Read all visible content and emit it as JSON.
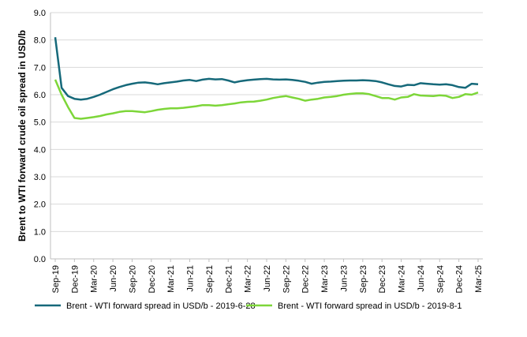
{
  "chart_data": {
    "type": "line",
    "title": "",
    "xlabel": "",
    "ylabel": "Brent to WTI forward crude oil spread in USD/b",
    "ylim": [
      0,
      9
    ],
    "yticks": [
      "0.0",
      "1.0",
      "2.0",
      "3.0",
      "4.0",
      "5.0",
      "6.0",
      "7.0",
      "8.0",
      "9.0"
    ],
    "grid": "horizontal",
    "legend_position": "bottom",
    "x_tick_labels": [
      "Sep-19",
      "Dec-19",
      "Mar-20",
      "Jun-20",
      "Sep-20",
      "Dec-20",
      "Mar-21",
      "Jun-21",
      "Sep-21",
      "Dec-21",
      "Mar-22",
      "Jun-22",
      "Sep-22",
      "Dec-22",
      "Mar-23",
      "Jun-23",
      "Sep-23",
      "Dec-23",
      "Mar-24",
      "Jun-24",
      "Sep-24",
      "Dec-24",
      "Mar-25"
    ],
    "x": [
      "Sep-19",
      "Oct-19",
      "Nov-19",
      "Dec-19",
      "Jan-20",
      "Feb-20",
      "Mar-20",
      "Apr-20",
      "May-20",
      "Jun-20",
      "Jul-20",
      "Aug-20",
      "Sep-20",
      "Oct-20",
      "Nov-20",
      "Dec-20",
      "Jan-21",
      "Feb-21",
      "Mar-21",
      "Apr-21",
      "May-21",
      "Jun-21",
      "Jul-21",
      "Aug-21",
      "Sep-21",
      "Oct-21",
      "Nov-21",
      "Dec-21",
      "Jan-22",
      "Feb-22",
      "Mar-22",
      "Apr-22",
      "May-22",
      "Jun-22",
      "Jul-22",
      "Aug-22",
      "Sep-22",
      "Oct-22",
      "Nov-22",
      "Dec-22",
      "Jan-23",
      "Feb-23",
      "Mar-23",
      "Apr-23",
      "May-23",
      "Jun-23",
      "Jul-23",
      "Aug-23",
      "Sep-23",
      "Oct-23",
      "Nov-23",
      "Dec-23",
      "Jan-24",
      "Feb-24",
      "Mar-24",
      "Apr-24",
      "May-24",
      "Jun-24",
      "Jul-24",
      "Aug-24",
      "Sep-24",
      "Oct-24",
      "Nov-24",
      "Dec-24",
      "Jan-25",
      "Feb-25",
      "Mar-25"
    ],
    "series": [
      {
        "name": "Brent - WTI forward spread in USD/b - 2019-6-28",
        "color": "#16697a",
        "values": [
          8.1,
          6.25,
          5.95,
          5.85,
          5.82,
          5.85,
          5.92,
          6.0,
          6.1,
          6.2,
          6.28,
          6.35,
          6.4,
          6.44,
          6.45,
          6.42,
          6.38,
          6.42,
          6.45,
          6.48,
          6.52,
          6.54,
          6.5,
          6.55,
          6.58,
          6.56,
          6.57,
          6.52,
          6.45,
          6.5,
          6.53,
          6.55,
          6.57,
          6.58,
          6.56,
          6.55,
          6.56,
          6.54,
          6.51,
          6.47,
          6.4,
          6.44,
          6.47,
          6.48,
          6.5,
          6.51,
          6.52,
          6.52,
          6.53,
          6.52,
          6.5,
          6.45,
          6.38,
          6.32,
          6.3,
          6.36,
          6.35,
          6.42,
          6.4,
          6.38,
          6.37,
          6.38,
          6.35,
          6.28,
          6.25,
          6.4,
          6.38
        ]
      },
      {
        "name": "Brent - WTI forward spread in USD/b - 2019-8-1",
        "color": "#7dd639",
        "values": [
          6.55,
          6.0,
          5.55,
          5.15,
          5.12,
          5.15,
          5.18,
          5.22,
          5.28,
          5.32,
          5.37,
          5.4,
          5.4,
          5.38,
          5.36,
          5.4,
          5.45,
          5.48,
          5.5,
          5.5,
          5.52,
          5.55,
          5.58,
          5.62,
          5.62,
          5.6,
          5.62,
          5.65,
          5.68,
          5.72,
          5.74,
          5.75,
          5.78,
          5.82,
          5.88,
          5.92,
          5.95,
          5.9,
          5.85,
          5.78,
          5.82,
          5.85,
          5.9,
          5.92,
          5.95,
          6.0,
          6.03,
          6.05,
          6.05,
          6.02,
          5.95,
          5.88,
          5.88,
          5.82,
          5.9,
          5.92,
          6.02,
          5.97,
          5.96,
          5.95,
          5.98,
          5.96,
          5.88,
          5.92,
          6.02,
          6.0,
          6.08
        ]
      }
    ]
  }
}
